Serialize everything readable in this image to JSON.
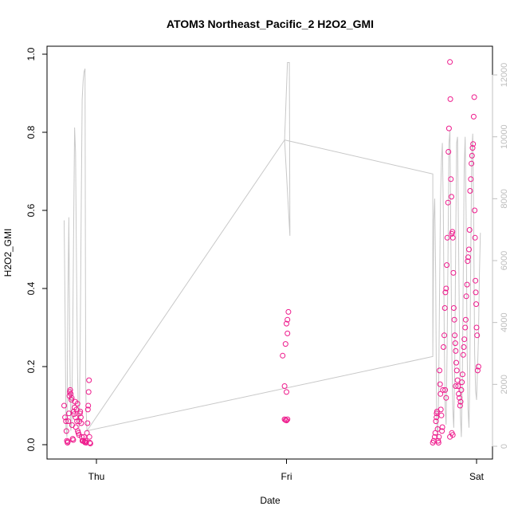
{
  "chart_data": {
    "type": "scatter",
    "title": "ATOM3 Northeast_Pacific_2 H2O2_GMI",
    "xlabel": "Date",
    "ylabel": "H2O2_GMI",
    "xlim": [
      -0.2,
      2.02
    ],
    "ylim": [
      0,
      1
    ],
    "x_ticks": [
      0,
      1,
      2
    ],
    "x_tick_labels": [
      "Thu",
      "Fri",
      "Sat"
    ],
    "y_ticks": [
      0.0,
      0.2,
      0.4,
      0.6,
      0.8,
      1.0
    ],
    "y_tick_labels": [
      "0.0",
      "0.2",
      "0.4",
      "0.6",
      "0.8",
      "1.0"
    ],
    "secondary_axis": {
      "ylim": [
        0,
        12000
      ],
      "ticks": [
        0,
        2000,
        4000,
        6000,
        8000,
        10000,
        12000
      ],
      "tick_labels": [
        "0",
        "2000",
        "4000",
        "6000",
        "8000",
        "10000",
        "12000"
      ],
      "color": "#c0c0c0"
    },
    "colors": {
      "points": "#ee1a8c",
      "altitude_line": "#c8c8c8",
      "frame": "#000000"
    },
    "series": [
      {
        "role": "points",
        "points": [
          [
            -0.17,
            0.1
          ],
          [
            -0.165,
            0.07
          ],
          [
            -0.16,
            0.06
          ],
          [
            -0.158,
            0.035
          ],
          [
            -0.155,
            0.01
          ],
          [
            -0.152,
            0.005
          ],
          [
            -0.15,
            0.008
          ],
          [
            -0.148,
            0.06
          ],
          [
            -0.145,
            0.08
          ],
          [
            -0.142,
            0.125
          ],
          [
            -0.14,
            0.135
          ],
          [
            -0.138,
            0.14
          ],
          [
            -0.135,
            0.13
          ],
          [
            -0.132,
            0.115
          ],
          [
            -0.13,
            0.12
          ],
          [
            -0.128,
            0.05
          ],
          [
            -0.125,
            0.015
          ],
          [
            -0.122,
            0.012
          ],
          [
            -0.12,
            0.085
          ],
          [
            -0.118,
            0.078
          ],
          [
            -0.115,
            0.095
          ],
          [
            -0.112,
            0.11
          ],
          [
            -0.11,
            0.07
          ],
          [
            -0.108,
            0.045
          ],
          [
            -0.105,
            0.09
          ],
          [
            -0.102,
            0.06
          ],
          [
            -0.1,
            0.105
          ],
          [
            -0.098,
            0.035
          ],
          [
            -0.095,
            0.03
          ],
          [
            -0.092,
            0.025
          ],
          [
            -0.09,
            0.06
          ],
          [
            -0.087,
            0.08
          ],
          [
            -0.085,
            0.085
          ],
          [
            -0.082,
            0.07
          ],
          [
            -0.08,
            0.055
          ],
          [
            -0.077,
            0.02
          ],
          [
            -0.074,
            0.01
          ],
          [
            -0.07,
            0.01
          ],
          [
            -0.066,
            0.02
          ],
          [
            -0.063,
            0.008
          ],
          [
            -0.06,
            0.006
          ],
          [
            -0.057,
            0.01
          ],
          [
            -0.054,
            0.005
          ],
          [
            -0.05,
            0.03
          ],
          [
            -0.047,
            0.055
          ],
          [
            -0.045,
            0.09
          ],
          [
            -0.043,
            0.1
          ],
          [
            -0.041,
            0.135
          ],
          [
            -0.039,
            0.165
          ],
          [
            -0.037,
            0.02
          ],
          [
            -0.035,
            0.005
          ],
          [
            -0.032,
            0.003
          ],
          [
            1.01,
            0.34
          ],
          [
            1.005,
            0.32
          ],
          [
            1.0,
            0.31
          ],
          [
            1.005,
            0.285
          ],
          [
            0.995,
            0.258
          ],
          [
            0.98,
            0.228
          ],
          [
            0.99,
            0.15
          ],
          [
            1.0,
            0.135
          ],
          [
            0.99,
            0.065
          ],
          [
            0.995,
            0.063
          ],
          [
            1.0,
            0.062
          ],
          [
            1.005,
            0.065
          ],
          [
            1.77,
            0.005
          ],
          [
            1.775,
            0.01
          ],
          [
            1.78,
            0.02
          ],
          [
            1.783,
            0.03
          ],
          [
            1.786,
            0.06
          ],
          [
            1.789,
            0.07
          ],
          [
            1.79,
            0.08
          ],
          [
            1.792,
            0.085
          ],
          [
            1.795,
            0.04
          ],
          [
            1.798,
            0.01
          ],
          [
            1.8,
            0.005
          ],
          [
            1.802,
            0.02
          ],
          [
            1.805,
            0.19
          ],
          [
            1.808,
            0.155
          ],
          [
            1.81,
            0.13
          ],
          [
            1.812,
            0.09
          ],
          [
            1.815,
            0.075
          ],
          [
            1.818,
            0.035
          ],
          [
            1.82,
            0.045
          ],
          [
            1.823,
            0.14
          ],
          [
            1.826,
            0.25
          ],
          [
            1.83,
            0.28
          ],
          [
            1.833,
            0.35
          ],
          [
            1.836,
            0.39
          ],
          [
            1.84,
            0.4
          ],
          [
            1.843,
            0.46
          ],
          [
            1.846,
            0.53
          ],
          [
            1.85,
            0.62
          ],
          [
            1.852,
            0.75
          ],
          [
            1.855,
            0.81
          ],
          [
            1.86,
            0.98
          ],
          [
            1.862,
            0.885
          ],
          [
            1.865,
            0.68
          ],
          [
            1.868,
            0.635
          ],
          [
            1.87,
            0.54
          ],
          [
            1.873,
            0.545
          ],
          [
            1.875,
            0.53
          ],
          [
            1.878,
            0.44
          ],
          [
            1.88,
            0.35
          ],
          [
            1.883,
            0.32
          ],
          [
            1.885,
            0.28
          ],
          [
            1.888,
            0.26
          ],
          [
            1.89,
            0.24
          ],
          [
            1.893,
            0.21
          ],
          [
            1.896,
            0.19
          ],
          [
            1.9,
            0.165
          ],
          [
            1.903,
            0.15
          ],
          [
            1.906,
            0.13
          ],
          [
            1.91,
            0.12
          ],
          [
            1.913,
            0.1
          ],
          [
            1.916,
            0.11
          ],
          [
            1.92,
            0.14
          ],
          [
            1.923,
            0.16
          ],
          [
            1.926,
            0.18
          ],
          [
            1.93,
            0.23
          ],
          [
            1.933,
            0.25
          ],
          [
            1.936,
            0.27
          ],
          [
            1.94,
            0.3
          ],
          [
            1.943,
            0.32
          ],
          [
            1.946,
            0.38
          ],
          [
            1.95,
            0.41
          ],
          [
            1.953,
            0.47
          ],
          [
            1.956,
            0.48
          ],
          [
            1.96,
            0.5
          ],
          [
            1.963,
            0.55
          ],
          [
            1.966,
            0.65
          ],
          [
            1.97,
            0.68
          ],
          [
            1.973,
            0.72
          ],
          [
            1.976,
            0.74
          ],
          [
            1.979,
            0.76
          ],
          [
            1.982,
            0.77
          ],
          [
            1.985,
            0.84
          ],
          [
            1.988,
            0.89
          ],
          [
            1.99,
            0.6
          ],
          [
            1.992,
            0.53
          ],
          [
            1.994,
            0.42
          ],
          [
            1.996,
            0.39
          ],
          [
            1.998,
            0.36
          ],
          [
            2.0,
            0.3
          ],
          [
            2.003,
            0.28
          ],
          [
            2.006,
            0.19
          ],
          [
            2.01,
            0.2
          ],
          [
            1.87,
            0.03
          ],
          [
            1.875,
            0.025
          ],
          [
            1.86,
            0.02
          ],
          [
            1.89,
            0.15
          ],
          [
            1.84,
            0.12
          ],
          [
            1.835,
            0.14
          ]
        ]
      },
      {
        "role": "altitude_line",
        "axis": "secondary",
        "points": [
          [
            -0.17,
            7300
          ],
          [
            -0.165,
            4500
          ],
          [
            -0.16,
            600
          ],
          [
            -0.155,
            300
          ],
          [
            -0.15,
            4800
          ],
          [
            -0.145,
            7400
          ],
          [
            -0.14,
            3000
          ],
          [
            -0.135,
            500
          ],
          [
            -0.13,
            800
          ],
          [
            -0.125,
            3400
          ],
          [
            -0.12,
            7000
          ],
          [
            -0.115,
            10300
          ],
          [
            -0.11,
            9500
          ],
          [
            -0.105,
            5800
          ],
          [
            -0.1,
            2600
          ],
          [
            -0.095,
            900
          ],
          [
            -0.09,
            600
          ],
          [
            -0.085,
            3500
          ],
          [
            -0.08,
            7600
          ],
          [
            -0.075,
            11200
          ],
          [
            -0.07,
            11800
          ],
          [
            -0.065,
            12100
          ],
          [
            -0.06,
            12200
          ],
          [
            -0.058,
            6000
          ],
          [
            -0.056,
            2000
          ],
          [
            -0.054,
            1200
          ],
          [
            -0.052,
            800
          ],
          [
            -0.05,
            500
          ],
          [
            0.99,
            9900
          ],
          [
            1.005,
            12400
          ],
          [
            1.015,
            12400
          ],
          [
            1.018,
            6800
          ],
          [
            0.99,
            9900
          ],
          [
            1.77,
            8800
          ],
          [
            1.77,
            2900
          ],
          [
            -0.05,
            500
          ],
          [
            1.77,
            2900
          ],
          [
            1.775,
            7300
          ],
          [
            1.78,
            8000
          ],
          [
            1.785,
            5500
          ],
          [
            1.79,
            800
          ],
          [
            1.795,
            300
          ],
          [
            1.8,
            1500
          ],
          [
            1.805,
            4800
          ],
          [
            1.81,
            7900
          ],
          [
            1.815,
            9200
          ],
          [
            1.82,
            9800
          ],
          [
            1.825,
            7600
          ],
          [
            1.83,
            3400
          ],
          [
            1.835,
            1200
          ],
          [
            1.84,
            700
          ],
          [
            1.845,
            3000
          ],
          [
            1.85,
            6300
          ],
          [
            1.855,
            9800
          ],
          [
            1.86,
            10200
          ],
          [
            1.865,
            6500
          ],
          [
            1.87,
            2900
          ],
          [
            1.875,
            1200
          ],
          [
            1.88,
            600
          ],
          [
            1.885,
            2500
          ],
          [
            1.89,
            6500
          ],
          [
            1.895,
            9800
          ],
          [
            1.9,
            10000
          ],
          [
            1.905,
            7000
          ],
          [
            1.91,
            3800
          ],
          [
            1.915,
            1000
          ],
          [
            1.92,
            300
          ],
          [
            1.925,
            2000
          ],
          [
            1.93,
            5500
          ],
          [
            1.935,
            9000
          ],
          [
            1.94,
            10000
          ],
          [
            1.945,
            7500
          ],
          [
            1.95,
            3200
          ],
          [
            1.955,
            1200
          ],
          [
            1.96,
            600
          ],
          [
            1.965,
            2800
          ],
          [
            1.97,
            6400
          ],
          [
            1.975,
            9500
          ],
          [
            1.98,
            10100
          ],
          [
            1.985,
            7200
          ],
          [
            1.99,
            3000
          ],
          [
            1.995,
            1800
          ],
          [
            2.0,
            1500
          ],
          [
            2.005,
            2500
          ],
          [
            2.01,
            3500
          ],
          [
            2.015,
            5600
          ],
          [
            2.02,
            6900
          ]
        ]
      }
    ]
  }
}
